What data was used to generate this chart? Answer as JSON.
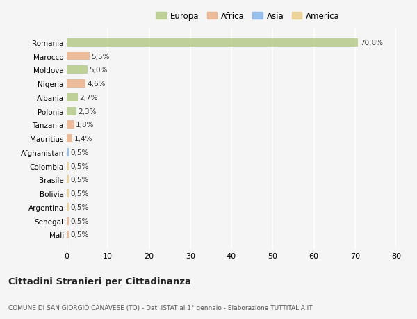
{
  "countries": [
    "Romania",
    "Marocco",
    "Moldova",
    "Nigeria",
    "Albania",
    "Polonia",
    "Tanzania",
    "Mauritius",
    "Afghanistan",
    "Colombia",
    "Brasile",
    "Bolivia",
    "Argentina",
    "Senegal",
    "Mali"
  ],
  "values": [
    70.8,
    5.5,
    5.0,
    4.6,
    2.7,
    2.3,
    1.8,
    1.4,
    0.5,
    0.5,
    0.5,
    0.5,
    0.5,
    0.5,
    0.5
  ],
  "labels": [
    "70,8%",
    "5,5%",
    "5,0%",
    "4,6%",
    "2,7%",
    "2,3%",
    "1,8%",
    "1,4%",
    "0,5%",
    "0,5%",
    "0,5%",
    "0,5%",
    "0,5%",
    "0,5%",
    "0,5%"
  ],
  "colors": [
    "#adc57a",
    "#e8a87c",
    "#adc57a",
    "#e8a87c",
    "#adc57a",
    "#adc57a",
    "#e8a87c",
    "#e8a87c",
    "#7aade8",
    "#e8c87a",
    "#e8c87a",
    "#e8c87a",
    "#e8c87a",
    "#e8a87c",
    "#e8a87c"
  ],
  "legend": [
    {
      "label": "Europa",
      "color": "#adc57a"
    },
    {
      "label": "Africa",
      "color": "#e8a87c"
    },
    {
      "label": "Asia",
      "color": "#7aade8"
    },
    {
      "label": "America",
      "color": "#e8c87a"
    }
  ],
  "xlim": [
    0,
    80
  ],
  "xticks": [
    0,
    10,
    20,
    30,
    40,
    50,
    60,
    70,
    80
  ],
  "title1": "Cittadini Stranieri per Cittadinanza",
  "title2": "COMUNE DI SAN GIORGIO CANAVESE (TO) - Dati ISTAT al 1° gennaio - Elaborazione TUTTITALIA.IT",
  "background_color": "#f5f5f5",
  "bar_alpha": 0.75
}
